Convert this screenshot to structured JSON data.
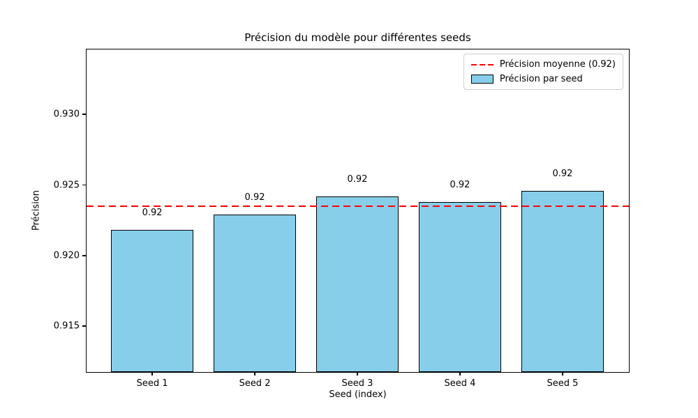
{
  "chart_data": {
    "type": "bar",
    "title": "Précision du modèle pour différentes seeds",
    "xlabel": "Seed (index)",
    "ylabel": "Précision",
    "categories": [
      "Seed 1",
      "Seed 2",
      "Seed 3",
      "Seed 4",
      "Seed 5"
    ],
    "values": [
      0.9218,
      0.9229,
      0.9242,
      0.9238,
      0.9246
    ],
    "bar_value_labels": [
      "0.92",
      "0.92",
      "0.92",
      "0.92",
      "0.92"
    ],
    "mean_value": 0.9235,
    "ylim": [
      0.9118,
      0.9346
    ],
    "yticks": [
      0.915,
      0.92,
      0.925,
      0.93
    ],
    "ytick_labels": [
      "0.915",
      "0.920",
      "0.925",
      "0.930"
    ],
    "grid": false,
    "legend_position": "upper right",
    "legend": {
      "mean_line_label": "Précision moyenne (0.92)",
      "bars_label": "Précision par seed"
    },
    "colors": {
      "bar_fill": "#87CEEB",
      "bar_edge": "#000000",
      "mean_line": "#FF0000",
      "text": "#000000",
      "legend_border": "#cccccc"
    }
  }
}
